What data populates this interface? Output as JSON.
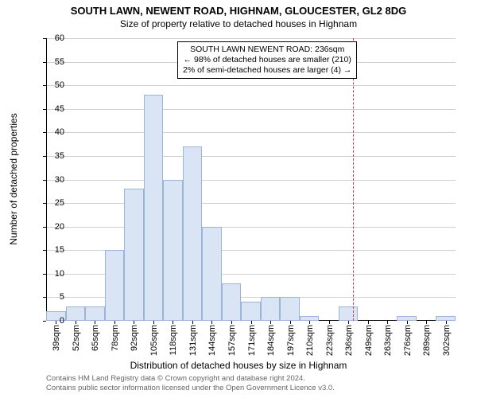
{
  "title_main": "SOUTH LAWN, NEWENT ROAD, HIGHNAM, GLOUCESTER, GL2 8DG",
  "title_sub": "Size of property relative to detached houses in Highnam",
  "ylabel": "Number of detached properties",
  "xlabel": "Distribution of detached houses by size in Highnam",
  "chart": {
    "type": "histogram",
    "bar_color": "#d9e4f4",
    "bar_border": "#9cb4d8",
    "grid_color": "#d0d0d0",
    "background": "#ffffff",
    "ylim": [
      0,
      60
    ],
    "ytick_step": 5,
    "x_labels": [
      "39sqm",
      "52sqm",
      "65sqm",
      "78sqm",
      "92sqm",
      "105sqm",
      "118sqm",
      "131sqm",
      "144sqm",
      "157sqm",
      "171sqm",
      "184sqm",
      "197sqm",
      "210sqm",
      "223sqm",
      "236sqm",
      "249sqm",
      "263sqm",
      "276sqm",
      "289sqm",
      "302sqm"
    ],
    "values": [
      2,
      3,
      3,
      15,
      28,
      48,
      30,
      37,
      20,
      8,
      4,
      5,
      5,
      1,
      0,
      3,
      0,
      0,
      1,
      0,
      1
    ],
    "reference_line_value": 236,
    "reference_line_color": "#d04040",
    "label_fontsize": 11
  },
  "annotation": {
    "line1": "SOUTH LAWN NEWENT ROAD: 236sqm",
    "line2": "← 98% of detached houses are smaller (210)",
    "line3": "2% of semi-detached houses are larger (4) →"
  },
  "footer1": "Contains HM Land Registry data © Crown copyright and database right 2024.",
  "footer2": "Contains public sector information licensed under the Open Government Licence v3.0."
}
